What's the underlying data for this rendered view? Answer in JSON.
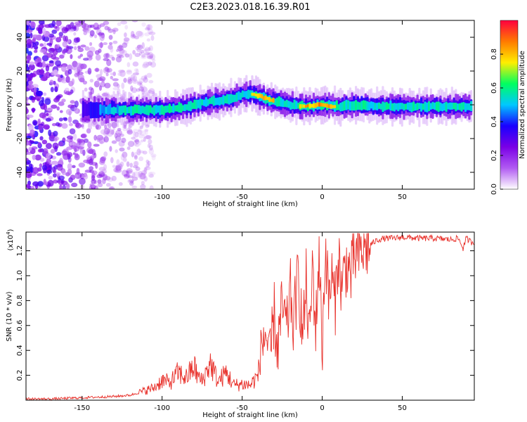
{
  "title": "C2E3.2023.018.16.39.R01",
  "colors": {
    "snr_line": "#e8302a",
    "background": "#ffffff",
    "frame": "#000000"
  },
  "chart_data": [
    {
      "type": "heatmap",
      "xlabel": "Height of straight line (km)",
      "ylabel": "Frequency (Hz)",
      "xlim": [
        -185,
        95
      ],
      "ylim": [
        -50,
        50
      ],
      "x_ticks": [
        -150,
        -100,
        -50,
        0,
        50
      ],
      "y_ticks": [
        -40,
        -20,
        0,
        20,
        40
      ],
      "colorbar": {
        "label": "Normalized spectral amplitude",
        "range": [
          0.0,
          1.0
        ],
        "ticks": [
          0.0,
          0.2,
          0.4,
          0.6,
          0.8
        ],
        "colormap": [
          "#ffffff",
          "#b15bf2",
          "#7a00e6",
          "#1a00ff",
          "#00c8ff",
          "#00ff60",
          "#ffee00",
          "#ff7a00",
          "#ff0040"
        ]
      },
      "ridge": {
        "x": [
          -150,
          -140,
          -130,
          -120,
          -110,
          -100,
          -90,
          -80,
          -70,
          -60,
          -50,
          -45,
          -40,
          -30,
          -20,
          -10,
          0,
          10,
          20,
          40,
          60,
          80,
          93
        ],
        "y": [
          -3,
          -3,
          -3,
          -3,
          -3,
          -3,
          -2,
          0,
          2,
          3,
          6,
          7,
          5,
          2,
          0,
          -1,
          0,
          -1,
          0,
          -1,
          -1,
          -1,
          -1
        ],
        "amplitude": [
          0.3,
          0.45,
          0.5,
          0.55,
          0.6,
          0.6,
          0.6,
          0.6,
          0.65,
          0.65,
          0.7,
          0.75,
          0.8,
          0.75,
          0.7,
          0.8,
          0.9,
          0.7,
          0.65,
          0.6,
          0.6,
          0.6,
          0.6
        ]
      },
      "noise_region": {
        "x": [
          -185,
          -115
        ],
        "y": [
          -50,
          50
        ]
      }
    },
    {
      "type": "line",
      "xlabel": "Height of straight line (km)",
      "ylabel": "SNR (10 * v/v)",
      "exponent_label": "(x10",
      "exponent_sup": "4",
      "exponent_close": ")",
      "xlim": [
        -185,
        95
      ],
      "ylim": [
        0,
        1.35
      ],
      "x_ticks": [
        -150,
        -100,
        -50,
        0,
        50
      ],
      "y_ticks": [
        0.2,
        0.4,
        0.6,
        0.8,
        1.0,
        1.2
      ],
      "y_tick_labels": [
        "0.2",
        "0.4",
        "0.6",
        "0.8",
        "1.0",
        "1.2"
      ],
      "series": [
        {
          "x": [
            -185,
            -170,
            -150,
            -130,
            -120,
            -110,
            -105,
            -100,
            -95,
            -90,
            -85,
            -80,
            -78,
            -75,
            -70,
            -65,
            -60,
            -55,
            -50,
            -45,
            -40,
            -38,
            -35,
            -33,
            -30,
            -28,
            -25,
            -22,
            -20,
            -18,
            -15,
            -12,
            -10,
            -8,
            -6,
            -4,
            -2,
            0,
            2,
            4,
            6,
            8,
            10,
            12,
            15,
            18,
            20,
            25,
            30,
            35,
            40,
            45,
            50,
            60,
            70,
            80,
            85,
            88,
            90,
            93
          ],
          "y": [
            0.01,
            0.01,
            0.02,
            0.03,
            0.04,
            0.08,
            0.1,
            0.16,
            0.14,
            0.22,
            0.18,
            0.27,
            0.2,
            0.15,
            0.3,
            0.15,
            0.22,
            0.12,
            0.13,
            0.12,
            0.2,
            0.45,
            0.55,
            0.25,
            0.7,
            0.4,
            0.75,
            0.55,
            0.9,
            0.6,
            1.0,
            0.5,
            0.95,
            0.45,
            1.1,
            0.55,
            1.2,
            0.4,
            1.25,
            0.8,
            1.0,
            0.75,
            1.2,
            0.9,
            1.1,
            1.0,
            1.15,
            1.2,
            1.25,
            1.29,
            1.3,
            1.3,
            1.31,
            1.3,
            1.3,
            1.29,
            1.3,
            1.22,
            1.3,
            1.27
          ]
        }
      ]
    }
  ]
}
